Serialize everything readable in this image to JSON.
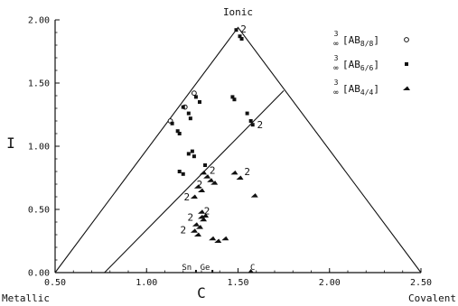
{
  "chart_data": {
    "type": "scatter",
    "title": "",
    "xlabel": "C",
    "ylabel": "I",
    "xlim": [
      0.5,
      2.5
    ],
    "ylim": [
      0.0,
      2.0
    ],
    "xticks": [
      "0.50",
      "1.00",
      "1.50",
      "2.00",
      "2.50"
    ],
    "yticks": [
      "0.00",
      "0.50",
      "1.00",
      "1.50",
      "2.00"
    ],
    "corner_labels": {
      "top": "Ionic",
      "left": "Metallic",
      "right": "Covalent"
    },
    "legend_position": "top-right",
    "triangle": {
      "left": [
        0.5,
        0.0
      ],
      "top": [
        1.5,
        1.94
      ],
      "right": [
        2.5,
        0.0
      ]
    },
    "divider_line": {
      "from": [
        0.77,
        0.0
      ],
      "to": [
        1.75,
        1.44
      ]
    },
    "series": [
      {
        "name": "AB8/8",
        "legend": {
          "top": "3",
          "bottom": "∞",
          "bracket": "[AB",
          "sub": "8/8",
          "close": "]"
        },
        "marker": "circle",
        "points": [
          [
            1.13,
            1.2
          ],
          [
            1.21,
            1.31
          ],
          [
            1.26,
            1.42
          ]
        ]
      },
      {
        "name": "AB6/6",
        "legend": {
          "top": "3",
          "bottom": "∞",
          "bracket": "[AB",
          "sub": "6/6",
          "close": "]"
        },
        "marker": "square",
        "points": [
          [
            1.49,
            1.92
          ],
          [
            1.51,
            1.87
          ],
          [
            1.52,
            1.85
          ],
          [
            1.14,
            1.18
          ],
          [
            1.17,
            1.12
          ],
          [
            1.18,
            1.1
          ],
          [
            1.2,
            1.31
          ],
          [
            1.23,
            1.26
          ],
          [
            1.24,
            1.22
          ],
          [
            1.27,
            1.39
          ],
          [
            1.29,
            1.35
          ],
          [
            1.47,
            1.39
          ],
          [
            1.48,
            1.37
          ],
          [
            1.55,
            1.26
          ],
          [
            1.57,
            1.2
          ],
          [
            1.58,
            1.17
          ],
          [
            1.23,
            0.94
          ],
          [
            1.25,
            0.96
          ],
          [
            1.26,
            0.92
          ],
          [
            1.32,
            0.85
          ],
          [
            1.18,
            0.8
          ],
          [
            1.2,
            0.78
          ]
        ]
      },
      {
        "name": "AB4/4",
        "legend": {
          "top": "3",
          "bottom": "∞",
          "bracket": "[AB",
          "sub": "4/4",
          "close": "]"
        },
        "marker": "triangle",
        "points": [
          [
            1.31,
            0.79
          ],
          [
            1.33,
            0.76
          ],
          [
            1.35,
            0.73
          ],
          [
            1.37,
            0.71
          ],
          [
            1.28,
            0.68
          ],
          [
            1.3,
            0.65
          ],
          [
            1.26,
            0.6
          ],
          [
            1.48,
            0.79
          ],
          [
            1.51,
            0.75
          ],
          [
            1.59,
            0.61
          ],
          [
            1.3,
            0.48
          ],
          [
            1.3,
            0.44
          ],
          [
            1.32,
            0.45
          ],
          [
            1.31,
            0.42
          ],
          [
            1.27,
            0.38
          ],
          [
            1.29,
            0.36
          ],
          [
            1.26,
            0.33
          ],
          [
            1.28,
            0.3
          ],
          [
            1.36,
            0.27
          ],
          [
            1.39,
            0.25
          ],
          [
            1.43,
            0.27
          ]
        ]
      }
    ],
    "annotations": [
      {
        "text": "2",
        "x": 1.53,
        "y": 1.93
      },
      {
        "text": "2",
        "x": 1.62,
        "y": 1.17
      },
      {
        "text": "2",
        "x": 1.55,
        "y": 0.8
      },
      {
        "text": "2",
        "x": 1.36,
        "y": 0.81
      },
      {
        "text": "2",
        "x": 1.29,
        "y": 0.7
      },
      {
        "text": "2",
        "x": 1.22,
        "y": 0.6
      },
      {
        "text": "2",
        "x": 1.33,
        "y": 0.49
      },
      {
        "text": "2",
        "x": 1.24,
        "y": 0.44
      },
      {
        "text": "2",
        "x": 1.2,
        "y": 0.34
      }
    ],
    "baseline_labels": [
      {
        "text": "Sn",
        "x": 1.22,
        "y": 0.0
      },
      {
        "text": "Ge",
        "x": 1.32,
        "y": 0.0
      },
      {
        "text": "C",
        "x": 1.58,
        "y": 0.0
      }
    ]
  }
}
